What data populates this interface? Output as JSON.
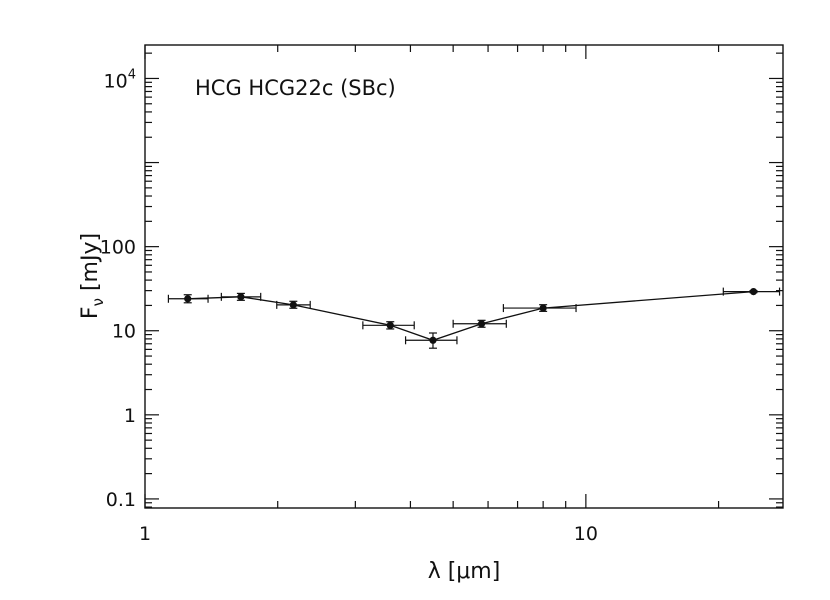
{
  "chart_data": {
    "type": "scatter",
    "title": "",
    "annotation": "HCG HCG22c (SBc)",
    "xlabel": "λ [μm]",
    "ylabel": "F_ν [mJy]",
    "xscale": "log",
    "yscale": "log",
    "xlim": [
      1.0,
      28.0
    ],
    "ylim": [
      0.078,
      25000
    ],
    "x_ticks": [
      {
        "value": 1,
        "label": "1"
      },
      {
        "value": 10,
        "label": "10"
      }
    ],
    "y_ticks": [
      {
        "value": 0.1,
        "label": "0.1"
      },
      {
        "value": 1,
        "label": "1"
      },
      {
        "value": 10,
        "label": "10"
      },
      {
        "value": 100,
        "label": "100"
      },
      {
        "value": 10000,
        "label": "10",
        "sup": "4"
      }
    ],
    "grid": false,
    "series": [
      {
        "name": "HCG22c",
        "connected": true,
        "points": [
          {
            "x": 1.25,
            "y": 24.0,
            "xlo": 1.13,
            "xhi": 1.39,
            "ylo": 21.5,
            "yhi": 26.8
          },
          {
            "x": 1.65,
            "y": 25.3,
            "xlo": 1.49,
            "xhi": 1.83,
            "ylo": 23.0,
            "yhi": 27.8
          },
          {
            "x": 2.17,
            "y": 20.3,
            "xlo": 1.99,
            "xhi": 2.37,
            "ylo": 18.5,
            "yhi": 22.4
          },
          {
            "x": 3.6,
            "y": 11.6,
            "xlo": 3.12,
            "xhi": 4.08,
            "ylo": 10.5,
            "yhi": 12.8
          },
          {
            "x": 4.5,
            "y": 7.7,
            "xlo": 3.9,
            "xhi": 5.1,
            "ylo": 6.2,
            "yhi": 9.4
          },
          {
            "x": 5.8,
            "y": 12.1,
            "xlo": 5.0,
            "xhi": 6.6,
            "ylo": 11.0,
            "yhi": 13.3
          },
          {
            "x": 8.0,
            "y": 18.6,
            "xlo": 6.5,
            "xhi": 9.5,
            "ylo": 17.0,
            "yhi": 20.4
          },
          {
            "x": 24.0,
            "y": 29.2,
            "xlo": 20.5,
            "xhi": 27.5,
            "ylo": 28.4,
            "yhi": 30.0
          }
        ]
      }
    ]
  }
}
